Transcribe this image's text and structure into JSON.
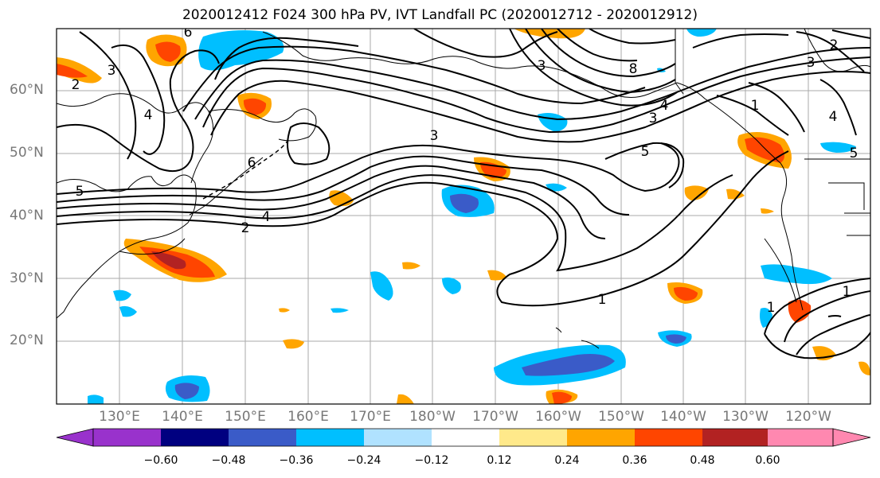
{
  "title": "2020012412 F024 300 hPa PV, IVT Landfall PC (2020012712 - 2020012912)",
  "map": {
    "lat_labels": [
      "60°N",
      "50°N",
      "40°N",
      "30°N",
      "20°N"
    ],
    "lon_labels": [
      "130°E",
      "140°E",
      "150°E",
      "160°E",
      "170°E",
      "180°W",
      "170°W",
      "160°W",
      "150°W",
      "140°W",
      "130°W",
      "120°W"
    ],
    "contour_labels": [
      "8",
      "6",
      "5",
      "4",
      "3",
      "2",
      "1"
    ]
  },
  "colorbar": {
    "ticks": [
      "−0.60",
      "−0.48",
      "−0.36",
      "−0.24",
      "−0.12",
      "0.12",
      "0.24",
      "0.36",
      "0.48",
      "0.60"
    ],
    "colors": [
      "#9932cc",
      "#000080",
      "#3a5bc8",
      "#00bfff",
      "#b0e2ff",
      "#ffffff",
      "#ffe98a",
      "#ffa500",
      "#ff4500",
      "#b22222",
      "#ff88b0"
    ]
  }
}
